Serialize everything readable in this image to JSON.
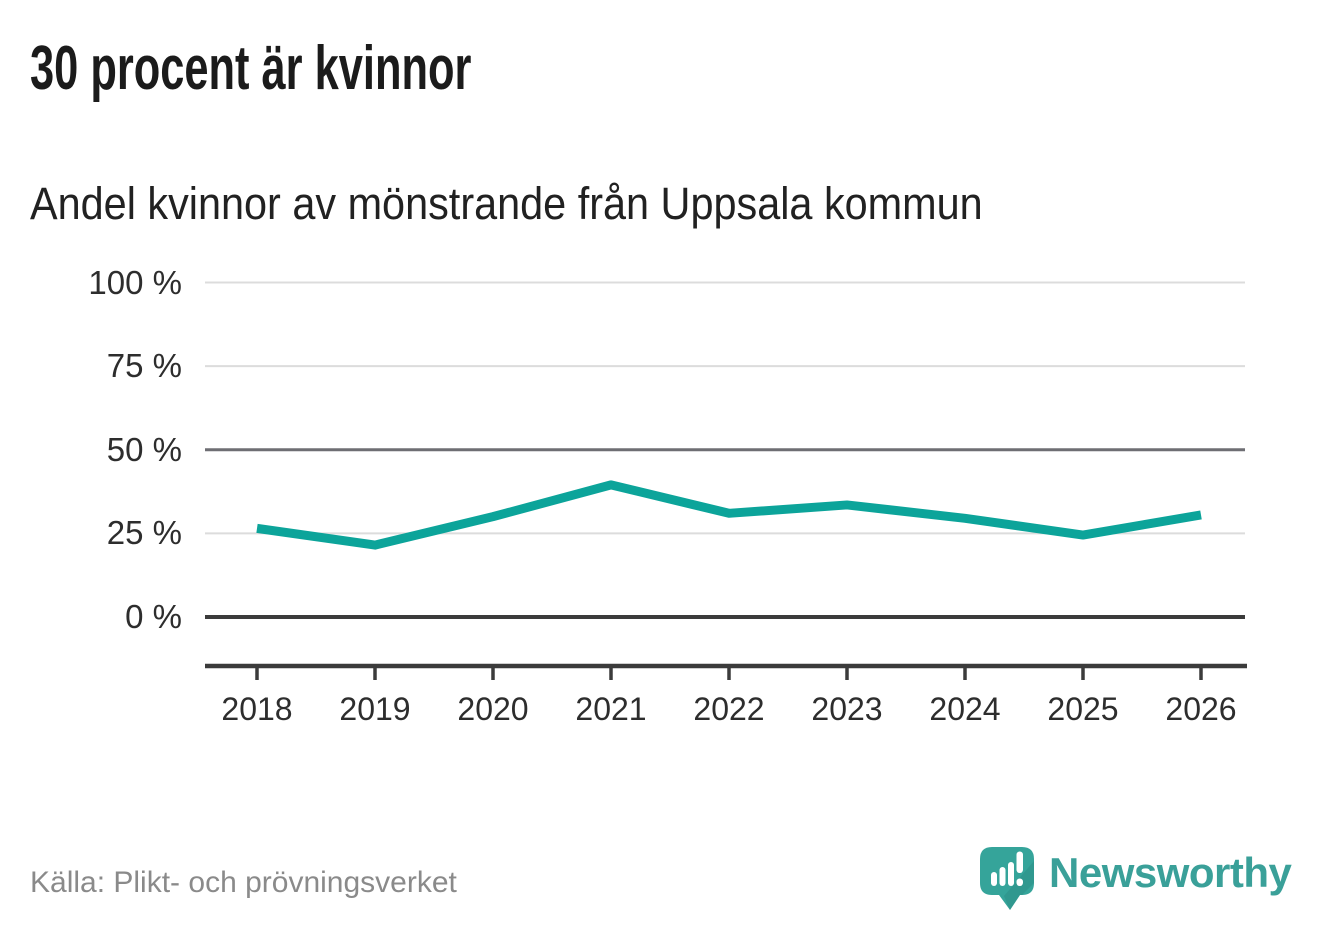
{
  "header": {
    "title": "30 procent är kvinnor",
    "subtitle": "Andel kvinnor av mönstrande från Uppsala kommun"
  },
  "footer": {
    "source": "Källa: Plikt- och prövningsverket",
    "brand": "Newsworthy"
  },
  "colors": {
    "line": "#0ca49a",
    "brand_teal": "#3aa099",
    "brand_bubble": "#35a49a",
    "brand_bubble_shade": "#2b8e86",
    "grid_light": "#dcdcdc",
    "grid_mid": "#6e6e73",
    "axis_dark": "#3b3b3b"
  },
  "chart_data": {
    "type": "line",
    "title": "30 procent är kvinnor",
    "subtitle": "Andel kvinnor av mönstrande från Uppsala kommun",
    "source": "Källa: Plikt- och prövningsverket",
    "x": [
      2018,
      2019,
      2020,
      2021,
      2022,
      2023,
      2024,
      2025,
      2026
    ],
    "series": [
      {
        "name": "Andel kvinnor av mönstrande",
        "values": [
          26.5,
          21.5,
          30,
          39.5,
          31,
          33.5,
          29.5,
          24.5,
          30.5
        ]
      }
    ],
    "unit": "%",
    "ylim": [
      0,
      100
    ],
    "yticks": [
      0,
      25,
      50,
      75,
      100
    ],
    "ytick_labels": [
      "0 %",
      "25 %",
      "50 %",
      "75 %",
      "100 %"
    ],
    "grid": "horizontal",
    "legend": "none"
  }
}
